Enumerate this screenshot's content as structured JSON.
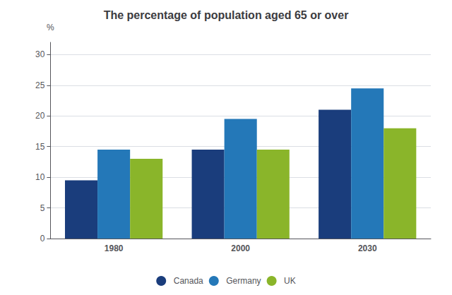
{
  "chart_data": {
    "type": "bar",
    "title": "The percentage of population aged 65 or over",
    "ylabel": "%",
    "categories": [
      "1980",
      "2000",
      "2030"
    ],
    "series": [
      {
        "name": "Canada",
        "color": "#1a3d7c",
        "values": [
          9.5,
          14.5,
          21.0
        ]
      },
      {
        "name": "Germany",
        "color": "#2478b8",
        "values": [
          14.5,
          19.5,
          24.5
        ]
      },
      {
        "name": "UK",
        "color": "#8ab52a",
        "values": [
          13.0,
          14.5,
          18.0
        ]
      }
    ],
    "ylim": [
      0,
      32
    ],
    "yticks": [
      0,
      5,
      10,
      15,
      20,
      25,
      30
    ],
    "grid": true,
    "legend": "bottom"
  }
}
